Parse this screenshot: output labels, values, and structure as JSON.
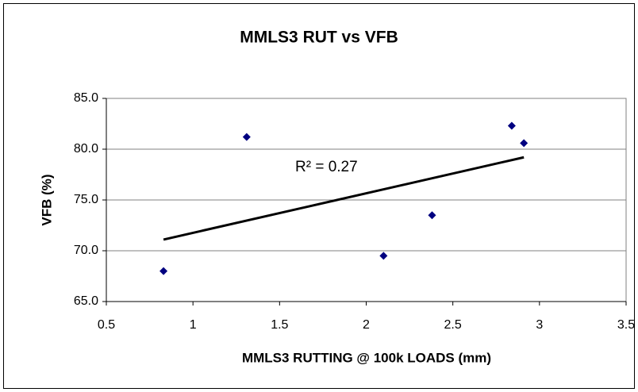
{
  "chart_data": {
    "type": "scatter",
    "title": "MMLS3 RUT vs VFB",
    "xlabel": "MMLS3 RUTTING @ 100k LOADS (mm)",
    "ylabel": "VFB (%)",
    "series": [
      {
        "color": "#000080",
        "x": [
          0.83,
          1.31,
          2.1,
          2.38,
          2.84,
          2.91
        ],
        "values": [
          68.0,
          81.2,
          69.5,
          73.5,
          82.3,
          80.6
        ]
      }
    ],
    "trendline": {
      "color": "#000000",
      "x": [
        0.83,
        2.91
      ],
      "values": [
        71.1,
        79.2
      ]
    },
    "annotation": "R² = 0.27",
    "xlim": [
      0.5,
      3.5
    ],
    "xticks": [
      0.5,
      1,
      1.5,
      2,
      2.5,
      3,
      3.5
    ],
    "ylim": [
      65,
      85
    ],
    "yticks": [
      {
        "value": 65,
        "label": "65.0"
      },
      {
        "value": 70,
        "label": "70.0"
      },
      {
        "value": 75,
        "label": "75.0"
      },
      {
        "value": 80,
        "label": "80.0"
      },
      {
        "value": 85,
        "label": "85.0"
      }
    ],
    "grid": true
  }
}
